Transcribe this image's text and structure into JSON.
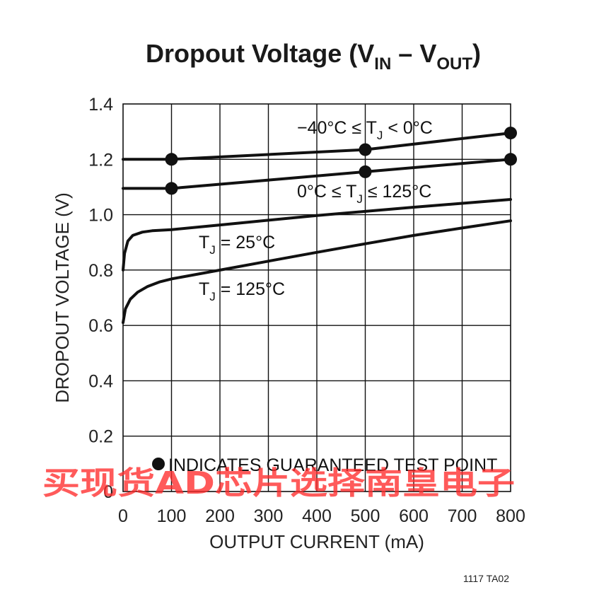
{
  "chart_data": {
    "type": "line",
    "title": {
      "main": "Dropout Voltage (V",
      "sub1": "IN",
      "mid": " – V",
      "sub2": "OUT",
      "end": ")"
    },
    "xlabel": "OUTPUT CURRENT (mA)",
    "ylabel": "DROPOUT VOLTAGE (V)",
    "xlim": [
      0,
      800
    ],
    "ylim": [
      0,
      1.4
    ],
    "x_ticks": [
      0,
      100,
      200,
      300,
      400,
      500,
      600,
      700,
      800
    ],
    "x_tick_labels": [
      "0",
      "100",
      "200",
      "300",
      "400",
      "500",
      "600",
      "700",
      "800"
    ],
    "y_ticks": [
      0,
      0.2,
      0.4,
      0.6,
      0.8,
      1.0,
      1.2,
      1.4
    ],
    "y_tick_labels": [
      "0",
      "0.2",
      "0.4",
      "0.6",
      "0.8",
      "1.0",
      "1.2",
      "1.4"
    ],
    "grid": true,
    "series": [
      {
        "name": "−40°C ≤ TJ < 0°C",
        "label": {
          "pre": "−40°C ≤ T",
          "sub": "J",
          "post": " < 0°C"
        },
        "x": [
          0,
          100,
          500,
          800
        ],
        "y": [
          1.2,
          1.2,
          1.235,
          1.295
        ],
        "markers": [
          [
            100,
            1.2
          ],
          [
            500,
            1.235
          ],
          [
            800,
            1.295
          ]
        ]
      },
      {
        "name": "0°C ≤ TJ ≤ 125°C",
        "label": {
          "pre": "0°C ≤ T",
          "sub": "J",
          "post": " ≤ 125°C"
        },
        "x": [
          0,
          100,
          500,
          800
        ],
        "y": [
          1.095,
          1.095,
          1.155,
          1.2
        ],
        "markers": [
          [
            100,
            1.095
          ],
          [
            500,
            1.155
          ],
          [
            800,
            1.2
          ]
        ]
      },
      {
        "name": "TJ = 25°C",
        "label": {
          "pre": "T",
          "sub": "J",
          "post": " = 25°C"
        },
        "x": [
          0,
          3,
          10,
          20,
          40,
          60,
          100,
          200,
          300,
          400,
          500,
          600,
          700,
          800
        ],
        "y": [
          0.8,
          0.86,
          0.905,
          0.925,
          0.937,
          0.942,
          0.946,
          0.963,
          0.98,
          0.997,
          1.012,
          1.027,
          1.041,
          1.055
        ],
        "markers": []
      },
      {
        "name": "TJ = 125°C",
        "label": {
          "pre": "T",
          "sub": "J",
          "post": " = 125°C"
        },
        "x": [
          0,
          5,
          15,
          30,
          50,
          75,
          100,
          200,
          300,
          400,
          500,
          600,
          700,
          800
        ],
        "y": [
          0.61,
          0.66,
          0.695,
          0.72,
          0.74,
          0.757,
          0.768,
          0.8,
          0.832,
          0.864,
          0.895,
          0.925,
          0.952,
          0.978
        ],
        "markers": []
      }
    ],
    "legend": {
      "text": "INDICATES GUARANTEED TEST POINT",
      "placement": "bottom-left"
    },
    "figure_id": "1117 TA02",
    "watermark": "买现货AD芯片选择南皇电子"
  }
}
